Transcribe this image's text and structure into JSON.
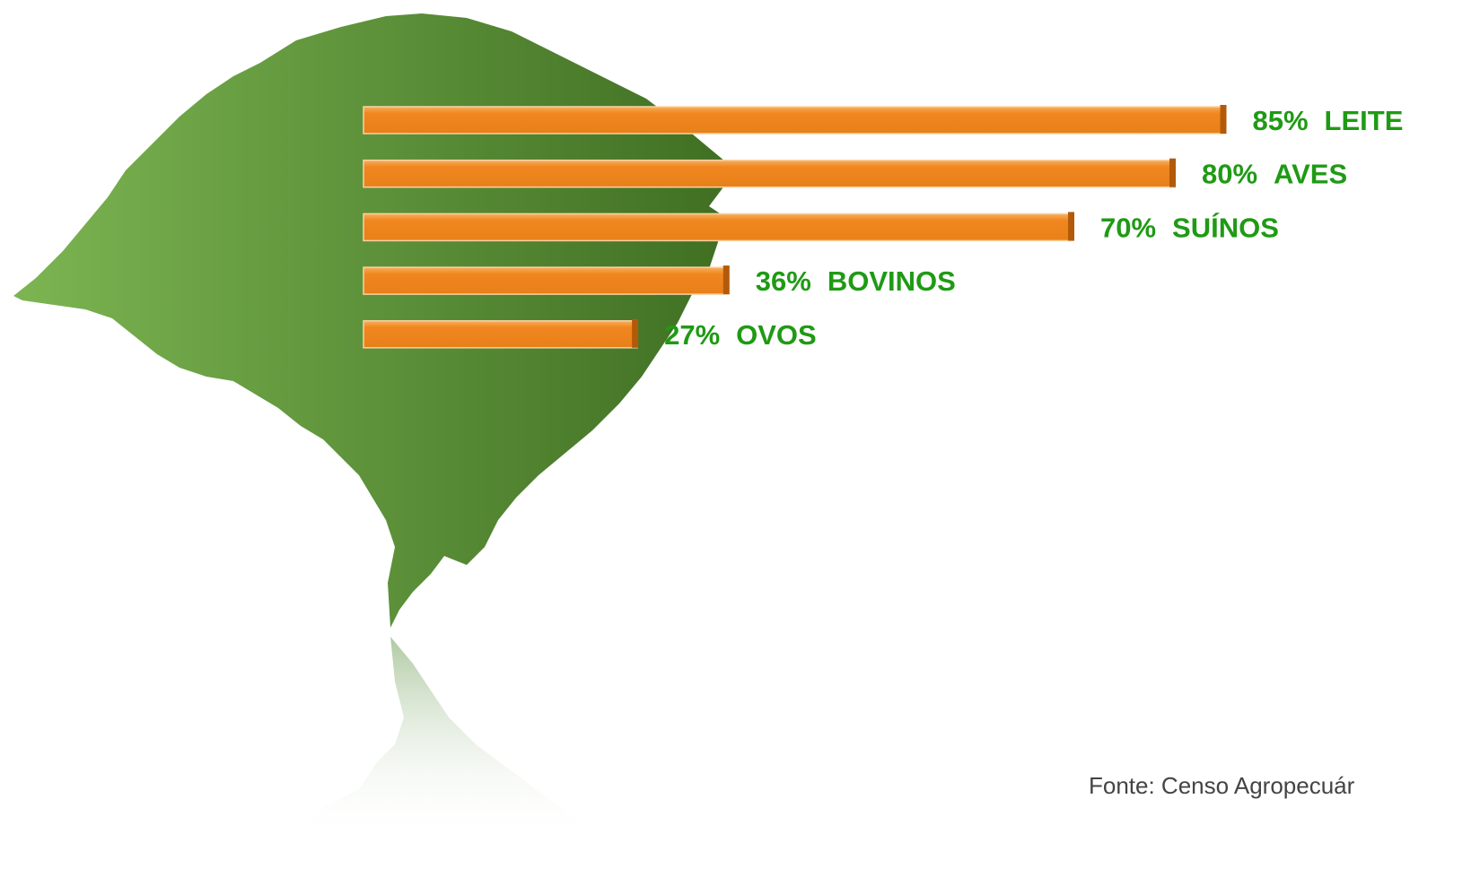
{
  "chart_data": {
    "type": "bar",
    "orientation": "horizontal",
    "categories": [
      "LEITE",
      "AVES",
      "SUÍNOS",
      "BOVINOS",
      "OVOS"
    ],
    "values": [
      85,
      80,
      70,
      36,
      27
    ],
    "value_labels": [
      "85%",
      "80%",
      "70%",
      "36%",
      "27%"
    ],
    "color": "#f0861e",
    "label_color": "#1f9a14",
    "source": "Fonte: Censo Agropecuár"
  }
}
